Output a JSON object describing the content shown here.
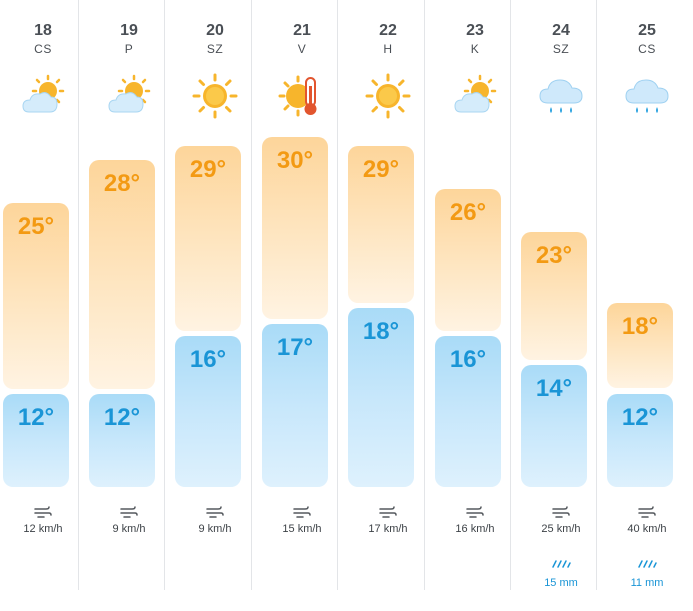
{
  "days": [
    {
      "date": "18",
      "dow": "CS",
      "icon": "partly-cloudy-icon",
      "high": "25°",
      "low": "12°",
      "wind": "12 km/h",
      "rain": ""
    },
    {
      "date": "19",
      "dow": "P",
      "icon": "partly-cloudy-icon",
      "high": "28°",
      "low": "12°",
      "wind": "9 km/h",
      "rain": ""
    },
    {
      "date": "20",
      "dow": "SZ",
      "icon": "sun-icon",
      "high": "29°",
      "low": "16°",
      "wind": "9 km/h",
      "rain": ""
    },
    {
      "date": "21",
      "dow": "V",
      "icon": "hot-sun-thermometer-icon",
      "high": "30°",
      "low": "17°",
      "wind": "15 km/h",
      "rain": ""
    },
    {
      "date": "22",
      "dow": "H",
      "icon": "sun-icon",
      "high": "29°",
      "low": "18°",
      "wind": "17 km/h",
      "rain": ""
    },
    {
      "date": "23",
      "dow": "K",
      "icon": "partly-cloudy-icon",
      "high": "26°",
      "low": "16°",
      "wind": "16 km/h",
      "rain": ""
    },
    {
      "date": "24",
      "dow": "SZ",
      "icon": "rain-cloud-icon",
      "high": "23°",
      "low": "14°",
      "wind": "25 km/h",
      "rain": "15 mm"
    },
    {
      "date": "25",
      "dow": "CS",
      "icon": "rain-cloud-icon",
      "high": "18°",
      "low": "12°",
      "wind": "40 km/h",
      "rain": "11 mm"
    }
  ],
  "colors": {
    "high_text": "#f39a13",
    "low_text": "#1a95d6",
    "rain_text": "#1a95d6",
    "sun": "#f7b52c",
    "cloud": "#d5ecfb"
  }
}
